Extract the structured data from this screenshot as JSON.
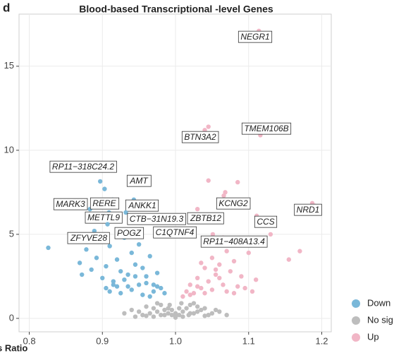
{
  "panel_label": "d",
  "chart_data": {
    "type": "scatter",
    "title": "Blood-based Transcriptional -level Genes",
    "x_label": "s Ratio",
    "xlim": [
      0.786,
      1.213
    ],
    "ylim": [
      -0.8,
      18.1
    ],
    "xticks": [
      0.8,
      0.9,
      {
        "value": 1.0,
        "label": "1.0"
      },
      1.1,
      1.2
    ],
    "yticks": [
      0,
      5,
      10,
      15
    ],
    "grid": true,
    "series": [
      {
        "name": "Down",
        "color": "#7ab8d9",
        "x": [
          0.826,
          0.862,
          0.878,
          0.869,
          0.872,
          0.885,
          0.892,
          0.9,
          0.905,
          0.91,
          0.915,
          0.92,
          0.925,
          0.93,
          0.935,
          0.94,
          0.945,
          0.95,
          0.955,
          0.96,
          0.965,
          0.97,
          0.975,
          0.98,
          0.985,
          0.95,
          0.94,
          0.93,
          0.92,
          0.91,
          0.96,
          0.97,
          0.945,
          0.935,
          0.955,
          0.925,
          0.965,
          0.975,
          0.905,
          0.915
        ],
        "values": [
          4.2,
          4.6,
          4.1,
          3.3,
          2.6,
          2.9,
          3.6,
          2.4,
          3.1,
          4.3,
          2.2,
          3.5,
          2.8,
          4.8,
          1.9,
          3.9,
          2.5,
          4.4,
          3.0,
          2.1,
          3.7,
          1.6,
          2.7,
          1.8,
          1.5,
          2.0,
          1.7,
          2.3,
          1.9,
          1.6,
          2.5,
          2.0,
          3.2,
          2.6,
          1.4,
          1.5,
          1.3,
          1.9,
          1.8,
          2.0
        ]
      },
      {
        "name": "No sig",
        "color": "#bdbdbd",
        "x": [
          0.93,
          0.94,
          0.95,
          0.96,
          0.97,
          0.975,
          0.98,
          0.985,
          0.99,
          0.995,
          1.0,
          1.005,
          1.01,
          1.015,
          1.02,
          1.025,
          1.03,
          1.035,
          1.04,
          1.05,
          1.06,
          1.07,
          0.955,
          0.965,
          0.975,
          0.985,
          0.99,
          0.995,
          1.0,
          1.0,
          1.005,
          1.01,
          1.02,
          1.03,
          1.045,
          1.055,
          0.945,
          0.96,
          0.98,
          0.992,
          1.008,
          1.018,
          1.04,
          0.97,
          1.025
        ],
        "values": [
          0.3,
          0.5,
          0.4,
          0.7,
          0.6,
          0.9,
          0.8,
          0.5,
          0.3,
          0.2,
          0.05,
          0.2,
          0.4,
          0.6,
          0.8,
          0.9,
          0.7,
          0.5,
          0.6,
          0.3,
          0.4,
          0.2,
          0.2,
          0.3,
          0.4,
          0.2,
          0.6,
          0.5,
          0.3,
          0.15,
          0.6,
          0.1,
          0.3,
          0.4,
          0.2,
          0.5,
          0.1,
          0.15,
          0.2,
          0.8,
          0.9,
          0.2,
          0.15,
          0.1,
          0.3
        ]
      },
      {
        "name": "Up",
        "color": "#f1b6c6",
        "x": [
          1.01,
          1.015,
          1.02,
          1.025,
          1.03,
          1.035,
          1.04,
          1.045,
          1.05,
          1.055,
          1.06,
          1.065,
          1.07,
          1.075,
          1.08,
          1.085,
          1.09,
          1.1,
          1.11,
          1.12,
          1.13,
          1.155,
          1.17,
          1.19,
          1.085,
          1.045,
          1.068,
          1.045,
          1.02,
          1.03,
          1.04,
          1.05,
          1.06,
          1.07,
          1.08,
          1.035,
          1.055,
          1.065,
          1.095,
          1.105
        ],
        "values": [
          1.3,
          1.6,
          2.0,
          1.5,
          2.4,
          1.8,
          3.0,
          2.2,
          3.6,
          2.6,
          3.2,
          2.0,
          4.0,
          2.8,
          3.4,
          1.9,
          2.5,
          3.9,
          2.3,
          4.6,
          5.0,
          3.5,
          4.0,
          6.7,
          8.1,
          8.2,
          7.5,
          11.4,
          1.4,
          1.9,
          1.5,
          1.7,
          2.4,
          1.6,
          1.5,
          3.3,
          2.9,
          4.8,
          1.8,
          1.6
        ]
      }
    ],
    "annotations": [
      {
        "label": "NEGR1",
        "x": 1.114,
        "y": 17.1
      },
      {
        "label": "TMEM106B",
        "x": 1.116,
        "y": 10.9
      },
      {
        "label": "BTN3A2",
        "x": 1.04,
        "y": 11.2
      },
      {
        "label": "RP11−318C24.2",
        "x": 0.897,
        "y": 8.15
      },
      {
        "label": "AMT",
        "x": 0.903,
        "y": 7.7
      },
      {
        "label": "MARK3",
        "x": 0.883,
        "y": 6.5
      },
      {
        "label": "RERE",
        "x": 0.914,
        "y": 7.06
      },
      {
        "label": "METTL9",
        "x": 0.909,
        "y": 6.3
      },
      {
        "label": "ANKK1",
        "x": 0.943,
        "y": 7.06
      },
      {
        "label": "CTB−31N19.3",
        "x": 0.932,
        "y": 6.3
      },
      {
        "label": "ZBTB12",
        "x": 1.03,
        "y": 6.5
      },
      {
        "label": "KCNG2",
        "x": 1.066,
        "y": 7.3
      },
      {
        "label": "NRD1",
        "x": 1.187,
        "y": 6.85
      },
      {
        "label": "CCS",
        "x": 1.111,
        "y": 6.1
      },
      {
        "label": "ZFYVE28",
        "x": 0.889,
        "y": 5.2
      },
      {
        "label": "POGZ",
        "x": 0.907,
        "y": 5.6
      },
      {
        "label": "C1QTNF4",
        "x": 0.974,
        "y": 5.3
      },
      {
        "label": "RP11−408A13.4",
        "x": 1.051,
        "y": 5.0
      }
    ]
  }
}
